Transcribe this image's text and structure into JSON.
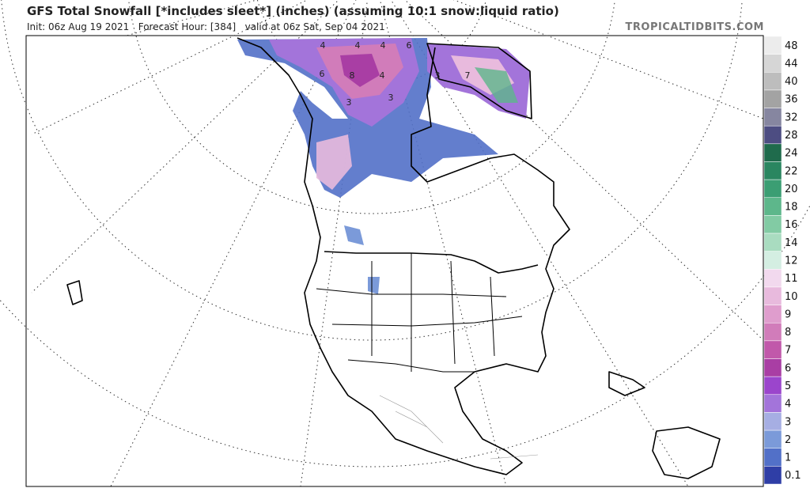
{
  "header": {
    "title": "GFS Total Snowfall [*includes sleet*] (inches) (assuming 10:1 snow:liquid ratio)",
    "subtitle": "Init: 06z Aug 19 2021   Forecast Hour: [384]   valid at 06z Sat, Sep 04 2021",
    "watermark": "TROPICALTIDBITS.COM"
  },
  "legend": {
    "levels": [
      {
        "label": "48",
        "color": "#ececec"
      },
      {
        "label": "44",
        "color": "#d6d6d6"
      },
      {
        "label": "40",
        "color": "#bdbdbd"
      },
      {
        "label": "36",
        "color": "#a3a3a3"
      },
      {
        "label": "32",
        "color": "#8686a0"
      },
      {
        "label": "28",
        "color": "#4d4d82"
      },
      {
        "label": "24",
        "color": "#1f6b4c"
      },
      {
        "label": "22",
        "color": "#2a8660"
      },
      {
        "label": "20",
        "color": "#3b9e73"
      },
      {
        "label": "18",
        "color": "#5db78b"
      },
      {
        "label": "16",
        "color": "#82cba4"
      },
      {
        "label": "14",
        "color": "#a9dcc0"
      },
      {
        "label": "12",
        "color": "#d4eee2"
      },
      {
        "label": "11",
        "color": "#f2d9ee"
      },
      {
        "label": "10",
        "color": "#e8badd"
      },
      {
        "label": "9",
        "color": "#df9dcd"
      },
      {
        "label": "8",
        "color": "#d17cba"
      },
      {
        "label": "7",
        "color": "#c158aa"
      },
      {
        "label": "6",
        "color": "#a93ea4"
      },
      {
        "label": "5",
        "color": "#9b45cc"
      },
      {
        "label": "4",
        "color": "#a374da"
      },
      {
        "label": "3",
        "color": "#a6aee3"
      },
      {
        "label": "2",
        "color": "#7b9ad9"
      },
      {
        "label": "1",
        "color": "#5270c8"
      },
      {
        "label": "0.1",
        "color": "#2f3ea6"
      }
    ]
  },
  "map_labels": [
    "4",
    "4",
    "4",
    "6",
    "6",
    "8",
    "4",
    "3",
    "7",
    "3",
    "3"
  ]
}
